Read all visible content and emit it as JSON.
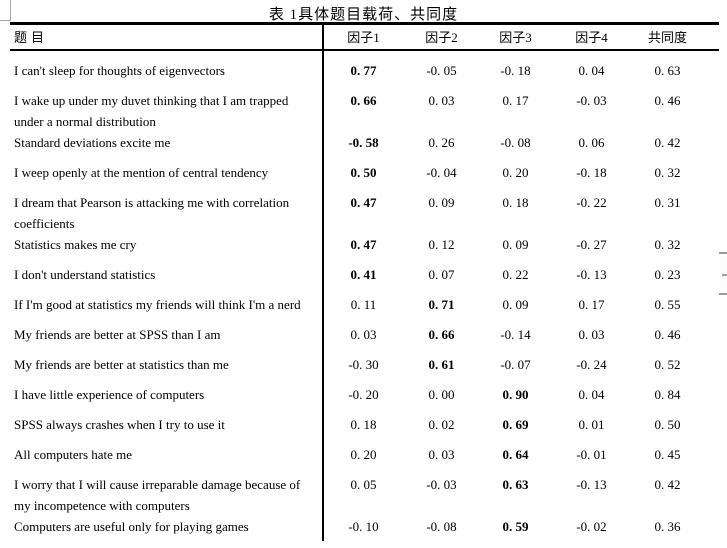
{
  "title": "表 1具体题目载荷、共同度",
  "table": {
    "headers": [
      "题目",
      "因子1",
      "因子2",
      "因子3",
      "因子4",
      "共同度"
    ],
    "rows": [
      {
        "lines": [
          "I can't sleep for thoughts of eigenvectors"
        ],
        "values": [
          "0. 77",
          "-0. 05",
          "-0. 18",
          "0. 04",
          "0. 63"
        ],
        "bold": [
          true,
          false,
          false,
          false,
          false
        ]
      },
      {
        "lines": [
          "I wake up under my duvet thinking that I am trapped",
          "under a normal distribution"
        ],
        "values": [
          "0. 66",
          "0. 03",
          "0. 17",
          "-0. 03",
          "0. 46"
        ],
        "bold": [
          true,
          false,
          false,
          false,
          false
        ]
      },
      {
        "lines": [
          "Standard deviations excite me"
        ],
        "values": [
          "-0. 58",
          "0. 26",
          "-0. 08",
          "0. 06",
          "0. 42"
        ],
        "bold": [
          true,
          false,
          false,
          false,
          false
        ]
      },
      {
        "lines": [
          "I weep openly at the mention of central tendency"
        ],
        "values": [
          "0. 50",
          "-0. 04",
          "0. 20",
          "-0. 18",
          "0. 32"
        ],
        "bold": [
          true,
          false,
          false,
          false,
          false
        ]
      },
      {
        "lines": [
          "I dream that Pearson is attacking me with correlation",
          "coefficients"
        ],
        "values": [
          "0. 47",
          "0. 09",
          "0. 18",
          "-0. 22",
          "0. 31"
        ],
        "bold": [
          true,
          false,
          false,
          false,
          false
        ]
      },
      {
        "lines": [
          "Statistics makes me cry"
        ],
        "values": [
          "0. 47",
          "0. 12",
          "0. 09",
          "-0. 27",
          "0. 32"
        ],
        "bold": [
          true,
          false,
          false,
          false,
          false
        ]
      },
      {
        "lines": [
          "I don't understand statistics"
        ],
        "values": [
          "0. 41",
          "0. 07",
          "0. 22",
          "-0. 13",
          "0. 23"
        ],
        "bold": [
          true,
          false,
          false,
          false,
          false
        ]
      },
      {
        "lines": [
          "If I'm good at statistics my friends will think I'm a nerd"
        ],
        "values": [
          "0. 11",
          "0. 71",
          "0. 09",
          "0. 17",
          "0. 55"
        ],
        "bold": [
          false,
          true,
          false,
          false,
          false
        ]
      },
      {
        "lines": [
          "My friends are better at SPSS than I am"
        ],
        "values": [
          "0. 03",
          "0. 66",
          "-0. 14",
          "0. 03",
          "0. 46"
        ],
        "bold": [
          false,
          true,
          false,
          false,
          false
        ]
      },
      {
        "lines": [
          "My friends are better at statistics than me"
        ],
        "values": [
          "-0. 30",
          "0. 61",
          "-0. 07",
          "-0. 24",
          "0. 52"
        ],
        "bold": [
          false,
          true,
          false,
          false,
          false
        ]
      },
      {
        "lines": [
          "I have little experience of computers"
        ],
        "values": [
          "-0. 20",
          "0. 00",
          "0. 90",
          "0. 04",
          "0. 84"
        ],
        "bold": [
          false,
          false,
          true,
          false,
          false
        ]
      },
      {
        "lines": [
          "SPSS always crashes when I try to use it"
        ],
        "values": [
          "0. 18",
          "0. 02",
          "0. 69",
          "0. 01",
          "0. 50"
        ],
        "bold": [
          false,
          false,
          true,
          false,
          false
        ]
      },
      {
        "lines": [
          "All computers hate me"
        ],
        "values": [
          "0. 20",
          "0. 03",
          "0. 64",
          "-0. 01",
          "0. 45"
        ],
        "bold": [
          false,
          false,
          true,
          false,
          false
        ]
      },
      {
        "lines": [
          "I worry that I will cause irreparable damage because of",
          "my incompetence with computers"
        ],
        "values": [
          "0. 05",
          "-0. 03",
          "0. 63",
          "-0. 13",
          "0. 42"
        ],
        "bold": [
          false,
          false,
          true,
          false,
          false
        ]
      },
      {
        "lines": [
          "Computers are useful only for playing games"
        ],
        "values": [
          "-0. 10",
          "-0. 08",
          "0. 59",
          "-0. 02",
          "0. 36"
        ],
        "bold": [
          false,
          false,
          true,
          false,
          false
        ]
      }
    ]
  }
}
